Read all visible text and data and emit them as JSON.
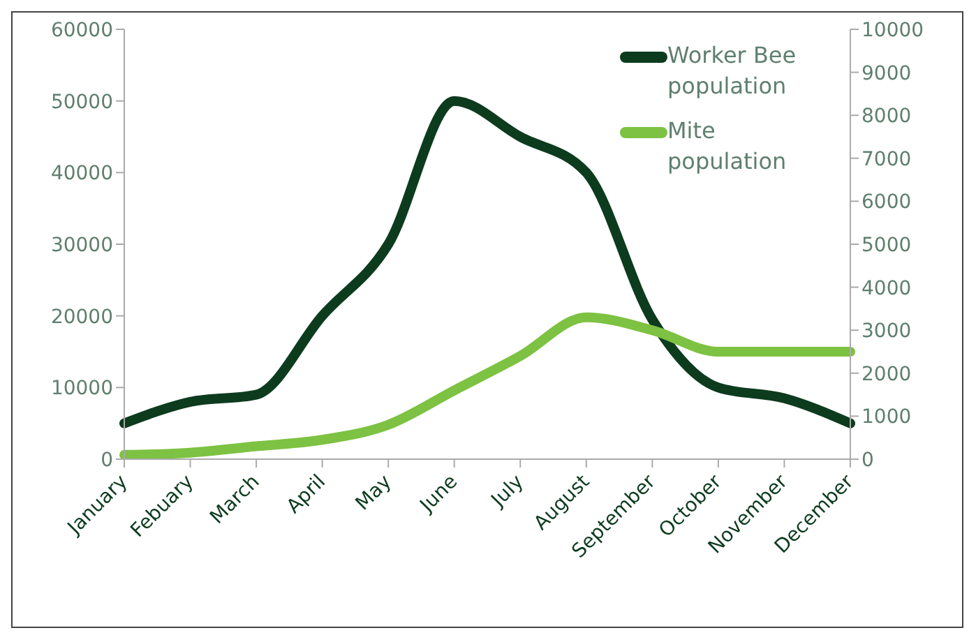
{
  "chart_data": {
    "type": "line",
    "categories": [
      "January",
      "Febuary",
      "March",
      "April",
      "May",
      "June",
      "July",
      "August",
      "September",
      "October",
      "November",
      "December"
    ],
    "series": [
      {
        "name": "Worker Bee population",
        "color": "#0d3b1e",
        "values": [
          5000,
          8000,
          9000,
          20000,
          30000,
          50000,
          45000,
          40000,
          19500,
          10000,
          8500,
          5000
        ]
      },
      {
        "name": "Mite population",
        "color": "#7dc242",
        "axis": "y2",
        "values": [
          100,
          150,
          300,
          450,
          800,
          1600,
          2400,
          3300,
          3000,
          2500,
          2500,
          2500
        ]
      }
    ],
    "ylim": [
      0,
      60000
    ],
    "yticks": [
      0,
      10000,
      20000,
      30000,
      40000,
      50000,
      60000
    ],
    "y2lim": [
      0,
      10000
    ],
    "y2ticks": [
      0,
      1000,
      2000,
      3000,
      4000,
      5000,
      6000,
      7000,
      8000,
      9000,
      10000
    ],
    "legend": "top right",
    "grid": false,
    "marker": "none",
    "line_style": "solid"
  }
}
